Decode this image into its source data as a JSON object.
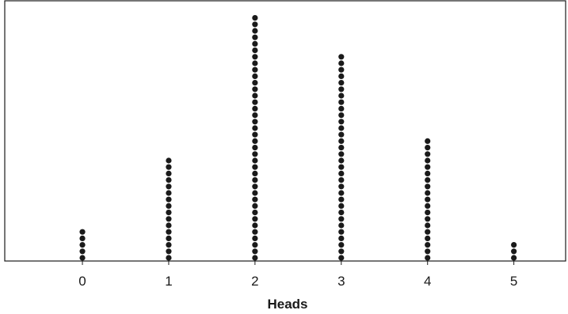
{
  "chart_data": {
    "type": "dot",
    "xlabel": "Heads",
    "ylabel": "",
    "categories": [
      "0",
      "1",
      "2",
      "3",
      "4",
      "5"
    ],
    "x": [
      0,
      1,
      2,
      3,
      4,
      5
    ],
    "counts": [
      5,
      16,
      38,
      32,
      19,
      3
    ],
    "xlim": [
      -0.9,
      5.6
    ],
    "grid": false,
    "legend": "none",
    "colors": {
      "dot": "#1a1a1a",
      "frame": "#1a1a1a",
      "background": "#ffffff"
    }
  }
}
